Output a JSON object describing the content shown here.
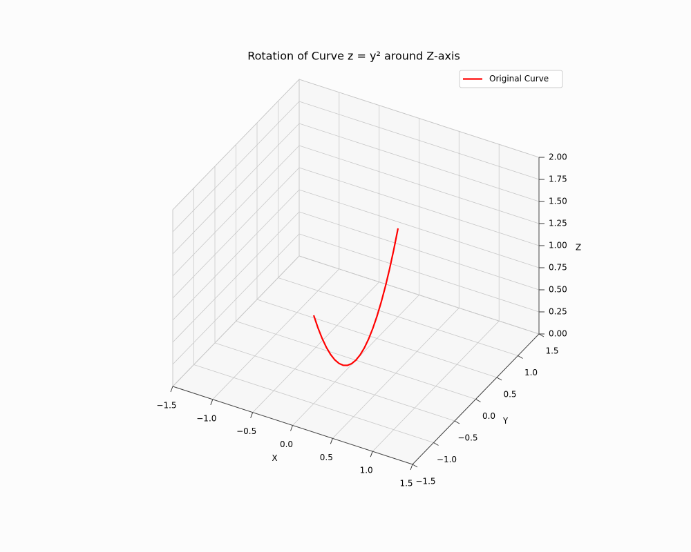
{
  "chart_data": {
    "type": "line3d",
    "title": "Rotation of Curve z = y² around Z-axis",
    "xlabel": "X",
    "ylabel": "Y",
    "zlabel": "Z",
    "xlim": [
      -1.5,
      1.5
    ],
    "ylim": [
      -1.5,
      1.5
    ],
    "zlim": [
      0,
      2
    ],
    "xticks": [
      {
        "value": -1.5,
        "label": "−1.5"
      },
      {
        "value": -1,
        "label": "−1.0"
      },
      {
        "value": -0.5,
        "label": "−0.5"
      },
      {
        "value": 0,
        "label": "0.0"
      },
      0.5,
      {
        "value": 1,
        "label": "1.0"
      },
      1.5
    ],
    "yticks": [
      {
        "value": -1.5,
        "label": "−1.5"
      },
      {
        "value": -1,
        "label": "−1.0"
      },
      {
        "value": -0.5,
        "label": "−0.5"
      },
      {
        "value": 0,
        "label": "0.0"
      },
      0.5,
      {
        "value": 1,
        "label": "1.0"
      },
      1.5
    ],
    "zticks": [
      {
        "value": 0,
        "label": "0.00"
      },
      0.25,
      {
        "value": 0.5,
        "label": "0.50"
      },
      0.75,
      {
        "value": 1,
        "label": "1.00"
      },
      1.25,
      {
        "value": 1.5,
        "label": "1.50"
      },
      1.75,
      {
        "value": 2,
        "label": "2.00"
      }
    ],
    "grid": true,
    "legend": "upper right",
    "series": [
      {
        "name": "Original Curve",
        "color": "#ff0000",
        "x": [
          0,
          0,
          0,
          0,
          0,
          0,
          0,
          0,
          0,
          0,
          0,
          0,
          0,
          0,
          0,
          0,
          0,
          0,
          0,
          0,
          0
        ],
        "y": [
          -1,
          -0.9,
          -0.8,
          -0.7,
          -0.6,
          -0.5,
          -0.4,
          -0.3,
          -0.2,
          -0.1,
          0,
          0.1,
          0.2,
          0.3,
          0.4,
          0.5,
          0.6,
          0.7,
          0.8,
          0.9,
          1
        ],
        "z": [
          1,
          0.81,
          0.64,
          0.49,
          0.36,
          0.25,
          0.16,
          0.09,
          0.04,
          0.01,
          0,
          0.01,
          0.04,
          0.09,
          0.16,
          0.25,
          0.36,
          0.49,
          0.64,
          0.81,
          1
        ]
      }
    ]
  }
}
